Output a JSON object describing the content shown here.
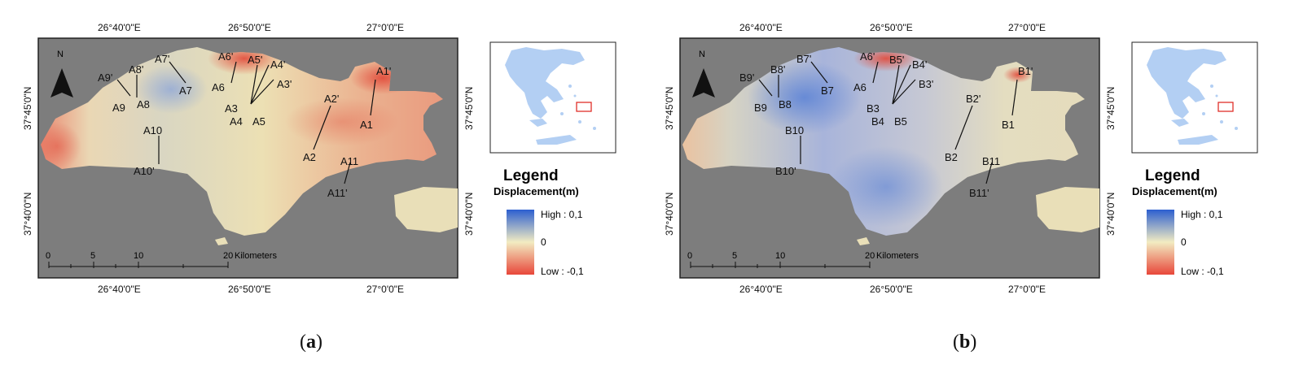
{
  "panels": [
    {
      "id": "a",
      "caption_letter": "a",
      "map_type": "displacement-map",
      "top_ticks": [
        "26°40'0\"E",
        "26°50'0\"E",
        "27°0'0\"E"
      ],
      "bottom_ticks": [
        "26°40'0\"E",
        "26°50'0\"E",
        "27°0'0\"E"
      ],
      "left_ticks": [
        "37°45'0\"N",
        "37°40'0\"N"
      ],
      "right_ticks": [
        "37°45'0\"N",
        "37°40'0\"N"
      ],
      "north_label": "N",
      "scale_bar": {
        "ticks": [
          "0",
          "5",
          "10",
          "20"
        ],
        "unit": "Kilometers"
      },
      "legend": {
        "title": "Legend",
        "subtitle": "Displacement(m)",
        "high": "High : 0,1",
        "mid": "0",
        "low": "Low : -0,1"
      },
      "profiles": [
        {
          "start": "A1",
          "end": "A1'"
        },
        {
          "start": "A2",
          "end": "A2'"
        },
        {
          "start": "A3",
          "end": "A3'"
        },
        {
          "start": "A4",
          "end": "A4'"
        },
        {
          "start": "A5",
          "end": "A5'"
        },
        {
          "start": "A6",
          "end": "A6'"
        },
        {
          "start": "A7",
          "end": "A7'"
        },
        {
          "start": "A8",
          "end": "A8'"
        },
        {
          "start": "A9",
          "end": "A9'"
        },
        {
          "start": "A10",
          "end": "A10'"
        },
        {
          "start": "A11",
          "end": "A11'"
        }
      ],
      "colors": {
        "low": "#e8473a",
        "mid": "#f2ecc2",
        "high": "#2c5fd0"
      }
    },
    {
      "id": "b",
      "caption_letter": "b",
      "map_type": "displacement-map",
      "top_ticks": [
        "26°40'0\"E",
        "26°50'0\"E",
        "27°0'0\"E"
      ],
      "bottom_ticks": [
        "26°40'0\"E",
        "26°50'0\"E",
        "27°0'0\"E"
      ],
      "left_ticks": [
        "37°45'0\"N",
        "37°40'0\"N"
      ],
      "right_ticks": [
        "37°45'0\"N",
        "37°40'0\"N"
      ],
      "north_label": "N",
      "scale_bar": {
        "ticks": [
          "0",
          "5",
          "10",
          "20"
        ],
        "unit": "Kilometers"
      },
      "legend": {
        "title": "Legend",
        "subtitle": "Displacement(m)",
        "high": "High : 0,1",
        "mid": "0",
        "low": "Low : -0,1"
      },
      "profiles": [
        {
          "start": "B1",
          "end": "B1'"
        },
        {
          "start": "B2",
          "end": "B2'"
        },
        {
          "start": "B3",
          "end": "B3'"
        },
        {
          "start": "B4",
          "end": "B4'"
        },
        {
          "start": "B5",
          "end": "B5'"
        },
        {
          "start": "A6",
          "end": "A6'"
        },
        {
          "start": "B7",
          "end": "B7'"
        },
        {
          "start": "B8",
          "end": "B8'"
        },
        {
          "start": "B9",
          "end": "B9'"
        },
        {
          "start": "B10",
          "end": "B10'"
        },
        {
          "start": "B11",
          "end": "B11'"
        }
      ],
      "colors": {
        "low": "#e8473a",
        "mid": "#f2ecc2",
        "high": "#2c5fd0"
      }
    }
  ]
}
